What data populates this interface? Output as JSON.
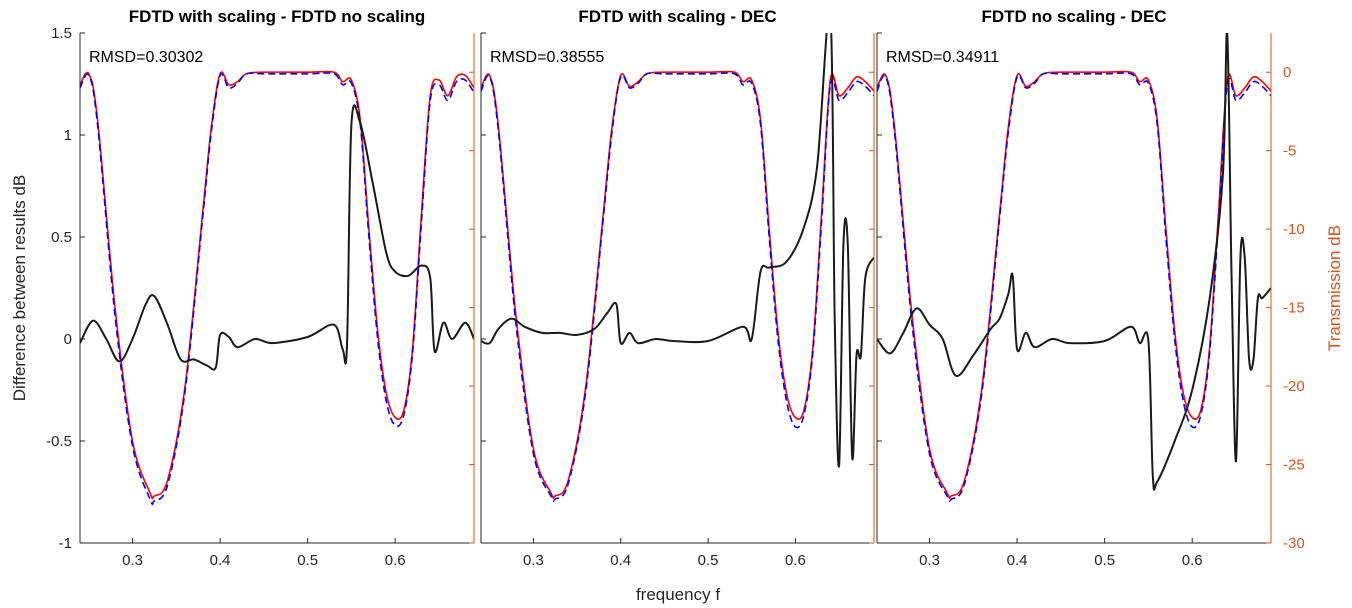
{
  "figure": {
    "xlabel": "frequency f",
    "ylabel_left": "Difference between results dB",
    "ylabel_right": "Transmission dB",
    "right_axis_color": "#D95319",
    "red_series_color": "#FF0000",
    "blue_series_color": "#0000FF",
    "diff_series_color": "#1A1A1A"
  },
  "chart_data": [
    {
      "type": "line",
      "title": "FDTD with scaling - FDTD no scaling",
      "annotation": "RMSD=0.30302",
      "xlim": [
        0.24,
        0.69
      ],
      "x_ticks": [
        0.3,
        0.4,
        0.5,
        0.6
      ],
      "left_axis": {
        "label": "Difference between results dB",
        "ylim": [
          -1,
          1.5
        ],
        "ticks": [
          -1,
          -0.5,
          0,
          0.5,
          1,
          1.5
        ]
      },
      "right_axis": {
        "label": "Transmission dB",
        "ylim": [
          -30,
          2.5
        ],
        "ticks": [
          -30,
          -25,
          -20,
          -15,
          -10,
          -5,
          0
        ]
      },
      "series": [
        {
          "axis": "right",
          "style": "solid",
          "color": "#FF0000",
          "x": [
            0.24,
            0.25,
            0.26,
            0.28,
            0.3,
            0.32,
            0.325,
            0.34,
            0.36,
            0.38,
            0.39,
            0.4,
            0.41,
            0.42,
            0.43,
            0.45,
            0.5,
            0.53,
            0.54,
            0.55,
            0.56,
            0.57,
            0.58,
            0.59,
            0.6,
            0.61,
            0.62,
            0.63,
            0.64,
            0.65,
            0.66,
            0.67,
            0.68,
            0.69
          ],
          "y": [
            -0.8,
            -0.1,
            -3.0,
            -15.0,
            -23.5,
            -26.8,
            -27.0,
            -26.0,
            -20.0,
            -9.0,
            -3.5,
            -0.1,
            -0.8,
            -0.6,
            -0.1,
            0.0,
            0.0,
            0.0,
            -0.6,
            -0.5,
            -3.0,
            -10.0,
            -16.5,
            -20.5,
            -22.0,
            -21.5,
            -17.5,
            -9.0,
            -1.5,
            -0.5,
            -1.5,
            -0.3,
            -0.2,
            -1.0
          ]
        },
        {
          "axis": "right",
          "style": "dashed",
          "color": "#0000FF",
          "x": [
            0.24,
            0.25,
            0.26,
            0.28,
            0.3,
            0.32,
            0.325,
            0.34,
            0.36,
            0.38,
            0.39,
            0.4,
            0.41,
            0.42,
            0.43,
            0.45,
            0.5,
            0.53,
            0.54,
            0.55,
            0.56,
            0.57,
            0.58,
            0.59,
            0.6,
            0.61,
            0.62,
            0.63,
            0.64,
            0.65,
            0.66,
            0.67,
            0.68,
            0.69
          ],
          "y": [
            -1.0,
            -0.2,
            -3.3,
            -15.5,
            -23.8,
            -27.2,
            -27.3,
            -26.3,
            -20.3,
            -9.3,
            -3.8,
            -0.2,
            -1.0,
            -0.7,
            -0.1,
            -0.1,
            -0.1,
            -0.1,
            -0.8,
            -0.7,
            -3.3,
            -10.5,
            -17.0,
            -21.0,
            -22.5,
            -21.8,
            -17.8,
            -9.5,
            -1.8,
            -0.8,
            -1.8,
            -0.6,
            -0.5,
            -1.3
          ]
        },
        {
          "axis": "left",
          "style": "solid",
          "color": "#1A1A1A",
          "x": [
            0.24,
            0.255,
            0.27,
            0.285,
            0.3,
            0.315,
            0.325,
            0.34,
            0.355,
            0.37,
            0.385,
            0.395,
            0.4,
            0.41,
            0.42,
            0.44,
            0.46,
            0.5,
            0.53,
            0.54,
            0.545,
            0.55,
            0.56,
            0.575,
            0.59,
            0.6,
            0.615,
            0.63,
            0.64,
            0.645,
            0.655,
            0.665,
            0.68,
            0.69
          ],
          "y": [
            -0.02,
            0.09,
            0.0,
            -0.11,
            0.0,
            0.17,
            0.21,
            0.07,
            -0.1,
            -0.1,
            -0.13,
            -0.14,
            0.02,
            0.01,
            -0.04,
            0.0,
            -0.02,
            0.01,
            0.07,
            -0.05,
            -0.03,
            1.05,
            1.06,
            0.75,
            0.42,
            0.33,
            0.31,
            0.36,
            0.3,
            -0.06,
            0.08,
            0.0,
            0.08,
            0.0
          ]
        }
      ]
    },
    {
      "type": "line",
      "title": "FDTD with scaling - DEC",
      "annotation": "RMSD=0.38555",
      "xlim": [
        0.24,
        0.69
      ],
      "x_ticks": [
        0.3,
        0.4,
        0.5,
        0.6
      ],
      "left_axis": {
        "ylim": [
          -1,
          1.5
        ]
      },
      "right_axis": {
        "ylim": [
          -30,
          2.5
        ]
      },
      "series": [
        {
          "axis": "right",
          "style": "solid",
          "color": "#FF0000",
          "x": [
            0.24,
            0.25,
            0.26,
            0.28,
            0.3,
            0.32,
            0.325,
            0.34,
            0.36,
            0.38,
            0.39,
            0.4,
            0.41,
            0.42,
            0.43,
            0.45,
            0.5,
            0.53,
            0.54,
            0.55,
            0.56,
            0.57,
            0.58,
            0.59,
            0.6,
            0.61,
            0.62,
            0.63,
            0.64,
            0.65,
            0.66,
            0.67,
            0.68,
            0.69
          ],
          "y": [
            -1.0,
            -0.2,
            -3.5,
            -15.5,
            -24.0,
            -26.8,
            -27.0,
            -26.0,
            -20.0,
            -9.0,
            -3.5,
            -0.2,
            -0.9,
            -0.6,
            -0.1,
            0.0,
            0.0,
            0.0,
            -0.6,
            -0.5,
            -3.0,
            -10.0,
            -16.5,
            -20.5,
            -22.0,
            -21.5,
            -17.5,
            -9.0,
            -0.5,
            -1.5,
            -1.0,
            -0.3,
            -0.6,
            -1.2
          ]
        },
        {
          "axis": "right",
          "style": "dashed",
          "color": "#0000FF",
          "x": [
            0.24,
            0.25,
            0.26,
            0.28,
            0.3,
            0.32,
            0.325,
            0.34,
            0.36,
            0.38,
            0.39,
            0.4,
            0.41,
            0.42,
            0.43,
            0.45,
            0.5,
            0.53,
            0.54,
            0.55,
            0.56,
            0.57,
            0.58,
            0.59,
            0.6,
            0.61,
            0.62,
            0.63,
            0.64,
            0.65,
            0.66,
            0.67,
            0.68,
            0.69
          ],
          "y": [
            -1.2,
            -0.3,
            -3.8,
            -16.0,
            -24.3,
            -27.0,
            -27.2,
            -26.2,
            -20.3,
            -9.3,
            -3.8,
            -0.3,
            -1.0,
            -0.7,
            -0.1,
            -0.1,
            -0.1,
            -0.1,
            -0.8,
            -0.7,
            -3.3,
            -10.5,
            -17.0,
            -21.0,
            -22.6,
            -21.8,
            -17.8,
            -9.5,
            -0.8,
            -1.8,
            -1.3,
            -0.6,
            -0.9,
            -1.5
          ]
        },
        {
          "axis": "left",
          "style": "solid",
          "color": "#1A1A1A",
          "x": [
            0.24,
            0.25,
            0.26,
            0.275,
            0.29,
            0.31,
            0.33,
            0.35,
            0.37,
            0.385,
            0.395,
            0.4,
            0.41,
            0.42,
            0.44,
            0.46,
            0.5,
            0.54,
            0.55,
            0.56,
            0.57,
            0.59,
            0.61,
            0.625,
            0.64,
            0.645,
            0.65,
            0.655,
            0.66,
            0.665,
            0.67,
            0.675,
            0.68,
            0.69
          ],
          "y": [
            -0.01,
            -0.02,
            0.05,
            0.1,
            0.06,
            0.03,
            0.03,
            0.02,
            0.05,
            0.13,
            0.17,
            -0.02,
            0.03,
            -0.02,
            0.0,
            -0.01,
            -0.01,
            0.06,
            0.0,
            0.33,
            0.35,
            0.38,
            0.55,
            0.85,
            1.6,
            0.1,
            -0.62,
            0.46,
            0.46,
            -0.58,
            -0.08,
            -0.08,
            0.3,
            0.4
          ]
        }
      ]
    },
    {
      "type": "line",
      "title": "FDTD no scaling - DEC",
      "annotation": "RMSD=0.34911",
      "xlim": [
        0.24,
        0.69
      ],
      "x_ticks": [
        0.3,
        0.4,
        0.5,
        0.6
      ],
      "left_axis": {
        "ylim": [
          -1,
          1.5
        ]
      },
      "right_axis": {
        "label": "Transmission dB",
        "ylim": [
          -30,
          2.5
        ],
        "ticks": [
          -30,
          -25,
          -20,
          -15,
          -10,
          -5,
          0
        ]
      },
      "series": [
        {
          "axis": "right",
          "style": "solid",
          "color": "#FF0000",
          "x": [
            0.24,
            0.25,
            0.26,
            0.28,
            0.3,
            0.32,
            0.325,
            0.34,
            0.36,
            0.38,
            0.39,
            0.4,
            0.41,
            0.42,
            0.43,
            0.45,
            0.5,
            0.53,
            0.54,
            0.55,
            0.56,
            0.57,
            0.58,
            0.59,
            0.6,
            0.61,
            0.62,
            0.63,
            0.64,
            0.65,
            0.66,
            0.67,
            0.68,
            0.69
          ],
          "y": [
            -1.0,
            -0.2,
            -3.5,
            -15.5,
            -24.0,
            -26.8,
            -27.0,
            -26.0,
            -20.0,
            -9.0,
            -3.5,
            -0.2,
            -0.9,
            -0.6,
            -0.1,
            0.0,
            0.0,
            0.0,
            -0.6,
            -0.5,
            -3.0,
            -10.0,
            -16.5,
            -20.5,
            -22.0,
            -21.5,
            -17.5,
            -9.0,
            -0.5,
            -1.5,
            -1.0,
            -0.3,
            -0.6,
            -1.2
          ]
        },
        {
          "axis": "right",
          "style": "dashed",
          "color": "#0000FF",
          "x": [
            0.24,
            0.25,
            0.26,
            0.28,
            0.3,
            0.32,
            0.325,
            0.34,
            0.36,
            0.38,
            0.39,
            0.4,
            0.41,
            0.42,
            0.43,
            0.45,
            0.5,
            0.53,
            0.54,
            0.55,
            0.56,
            0.57,
            0.58,
            0.59,
            0.6,
            0.61,
            0.62,
            0.63,
            0.64,
            0.65,
            0.66,
            0.67,
            0.68,
            0.69
          ],
          "y": [
            -1.2,
            -0.3,
            -3.8,
            -16.0,
            -24.3,
            -27.0,
            -27.2,
            -26.2,
            -20.3,
            -9.3,
            -3.8,
            -0.3,
            -1.0,
            -0.7,
            -0.1,
            -0.1,
            -0.1,
            -0.1,
            -0.8,
            -0.7,
            -3.3,
            -10.5,
            -17.0,
            -21.0,
            -22.6,
            -21.8,
            -17.8,
            -9.5,
            -0.8,
            -1.8,
            -1.3,
            -0.6,
            -0.9,
            -1.5
          ]
        },
        {
          "axis": "left",
          "style": "solid",
          "color": "#1A1A1A",
          "x": [
            0.24,
            0.255,
            0.27,
            0.285,
            0.3,
            0.315,
            0.33,
            0.35,
            0.37,
            0.38,
            0.39,
            0.395,
            0.4,
            0.41,
            0.42,
            0.44,
            0.46,
            0.5,
            0.53,
            0.54,
            0.55,
            0.555,
            0.56,
            0.58,
            0.6,
            0.62,
            0.635,
            0.64,
            0.645,
            0.65,
            0.655,
            0.66,
            0.665,
            0.67,
            0.675,
            0.68,
            0.69
          ],
          "y": [
            0.0,
            -0.07,
            0.03,
            0.15,
            0.07,
            0.0,
            -0.18,
            -0.08,
            0.05,
            0.1,
            0.22,
            0.31,
            -0.05,
            0.03,
            -0.04,
            0.0,
            -0.02,
            -0.01,
            0.06,
            -0.02,
            -0.01,
            -0.67,
            -0.7,
            -0.5,
            -0.25,
            0.2,
            0.8,
            1.5,
            0.3,
            -0.6,
            0.4,
            0.4,
            -0.1,
            -0.1,
            0.2,
            0.2,
            0.25
          ]
        }
      ]
    }
  ]
}
